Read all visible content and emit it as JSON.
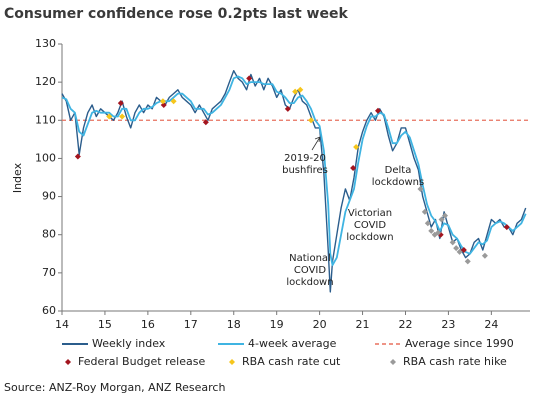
{
  "chart_data": {
    "type": "line",
    "title": "Consumer confidence rose 0.2pts last week",
    "ylabel": "Index",
    "source": "Source: ANZ-Roy Morgan, ANZ Research",
    "xlim": [
      14,
      24.9
    ],
    "xticks": [
      14,
      15,
      16,
      17,
      18,
      19,
      20,
      21,
      22,
      23,
      24
    ],
    "ylim": [
      60,
      130
    ],
    "yticks": [
      60,
      70,
      80,
      90,
      100,
      110,
      120,
      130
    ],
    "x": [
      14.0,
      14.1,
      14.2,
      14.3,
      14.4,
      14.5,
      14.6,
      14.7,
      14.8,
      14.9,
      15.0,
      15.1,
      15.2,
      15.3,
      15.4,
      15.5,
      15.6,
      15.7,
      15.8,
      15.9,
      16.0,
      16.1,
      16.2,
      16.3,
      16.4,
      16.5,
      16.6,
      16.7,
      16.8,
      16.9,
      17.0,
      17.1,
      17.2,
      17.3,
      17.4,
      17.5,
      17.6,
      17.7,
      17.8,
      17.9,
      18.0,
      18.1,
      18.2,
      18.3,
      18.4,
      18.5,
      18.6,
      18.7,
      18.8,
      18.9,
      19.0,
      19.1,
      19.2,
      19.3,
      19.4,
      19.5,
      19.6,
      19.7,
      19.8,
      19.9,
      20.0,
      20.1,
      20.2,
      20.25,
      20.3,
      20.4,
      20.5,
      20.6,
      20.7,
      20.8,
      20.9,
      21.0,
      21.1,
      21.2,
      21.3,
      21.4,
      21.5,
      21.6,
      21.7,
      21.8,
      21.9,
      22.0,
      22.1,
      22.2,
      22.3,
      22.4,
      22.5,
      22.6,
      22.7,
      22.8,
      22.9,
      23.0,
      23.1,
      23.2,
      23.3,
      23.4,
      23.5,
      23.6,
      23.7,
      23.8,
      23.9,
      24.0,
      24.1,
      24.2,
      24.3,
      24.4,
      24.5,
      24.6,
      24.7,
      24.8
    ],
    "series": [
      {
        "name": "Weekly index",
        "color": "#2b5d8c",
        "width": 1.4,
        "values": [
          117,
          115,
          110,
          112,
          101,
          108,
          112,
          114,
          111,
          113,
          112,
          111,
          110,
          112,
          115,
          111,
          108,
          112,
          114,
          112,
          114,
          113,
          116,
          115,
          114,
          116,
          117,
          118,
          116,
          115,
          114,
          112,
          114,
          112,
          110,
          113,
          114,
          115,
          117,
          120,
          123,
          121,
          120,
          118,
          122,
          119,
          121,
          118,
          121,
          119,
          116,
          118,
          114,
          113,
          116,
          118,
          115,
          114,
          111,
          108,
          108,
          96,
          76,
          65,
          73,
          80,
          87,
          92,
          89,
          95,
          103,
          107,
          110,
          112,
          110,
          113,
          111,
          106,
          102,
          104,
          108,
          108,
          104,
          100,
          97,
          90,
          86,
          82,
          84,
          79,
          86,
          82,
          78,
          79,
          76,
          74,
          75,
          78,
          79,
          76,
          80,
          84,
          83,
          84,
          82,
          82,
          80,
          83,
          84,
          87
        ]
      },
      {
        "name": "4-week average",
        "color": "#3fb4e2",
        "width": 1.8,
        "values": [
          116,
          115.5,
          113,
          112,
          107,
          106,
          109,
          112,
          112.5,
          112,
          112,
          112,
          111,
          111,
          113,
          113,
          110,
          110,
          112,
          113,
          113,
          113.5,
          114.5,
          115,
          115,
          115,
          116,
          117,
          117,
          116,
          115,
          113,
          113,
          113,
          111.5,
          112,
          113,
          114,
          116,
          118,
          121,
          121.5,
          121,
          119.5,
          120,
          120,
          120,
          119.5,
          119.5,
          119.5,
          117.5,
          117,
          116,
          114.5,
          114.5,
          116,
          116.5,
          115,
          113,
          110,
          108.5,
          102,
          88,
          75,
          72,
          74,
          80,
          86,
          89,
          92,
          99,
          105,
          108.5,
          111,
          111,
          112,
          111.5,
          108,
          104,
          104,
          106,
          107,
          105.5,
          102,
          98.5,
          93,
          88,
          85,
          83.5,
          81,
          83,
          82.5,
          80,
          79,
          77,
          75.5,
          75,
          76.5,
          78,
          77.5,
          78.5,
          82,
          83,
          83.5,
          83,
          82,
          81,
          82,
          83,
          85.5
        ]
      }
    ],
    "reference_line": {
      "name": "Average since 1990",
      "value": 110,
      "color": "#e8705f"
    },
    "markers": [
      {
        "name": "Federal Budget release",
        "color": "#a3151f",
        "x": [
          14.37,
          15.37,
          16.37,
          17.35,
          18.36,
          19.26,
          20.78,
          21.36,
          22.82,
          23.36,
          24.36
        ],
        "values": [
          100.5,
          114.5,
          114,
          109.5,
          121,
          113,
          97.5,
          112.5,
          80,
          76,
          82
        ]
      },
      {
        "name": "RBA cash rate cut",
        "color": "#f6c61c",
        "x": [
          15.1,
          15.4,
          16.35,
          16.6,
          19.43,
          19.55,
          19.8,
          20.85
        ],
        "values": [
          111,
          111,
          115,
          115,
          117.5,
          118,
          110,
          103
        ]
      },
      {
        "name": "RBA cash rate hike",
        "color": "#9a9a9a",
        "x": [
          22.35,
          22.45,
          22.52,
          22.6,
          22.68,
          22.76,
          22.84,
          22.92,
          23.1,
          23.18,
          23.26,
          23.45,
          23.85
        ],
        "values": [
          92,
          86,
          83,
          81,
          80,
          80.5,
          84,
          85,
          78,
          76.5,
          75.5,
          73,
          74.5
        ]
      }
    ],
    "annotations": [
      {
        "text": [
          "2019-20",
          "bushfires"
        ]
      },
      {
        "text": [
          "National",
          "COVID",
          "lockdown"
        ]
      },
      {
        "text": [
          "Victorian",
          "COVID",
          "lockdown"
        ]
      },
      {
        "text": [
          "Delta",
          "lockdowns"
        ]
      }
    ]
  }
}
